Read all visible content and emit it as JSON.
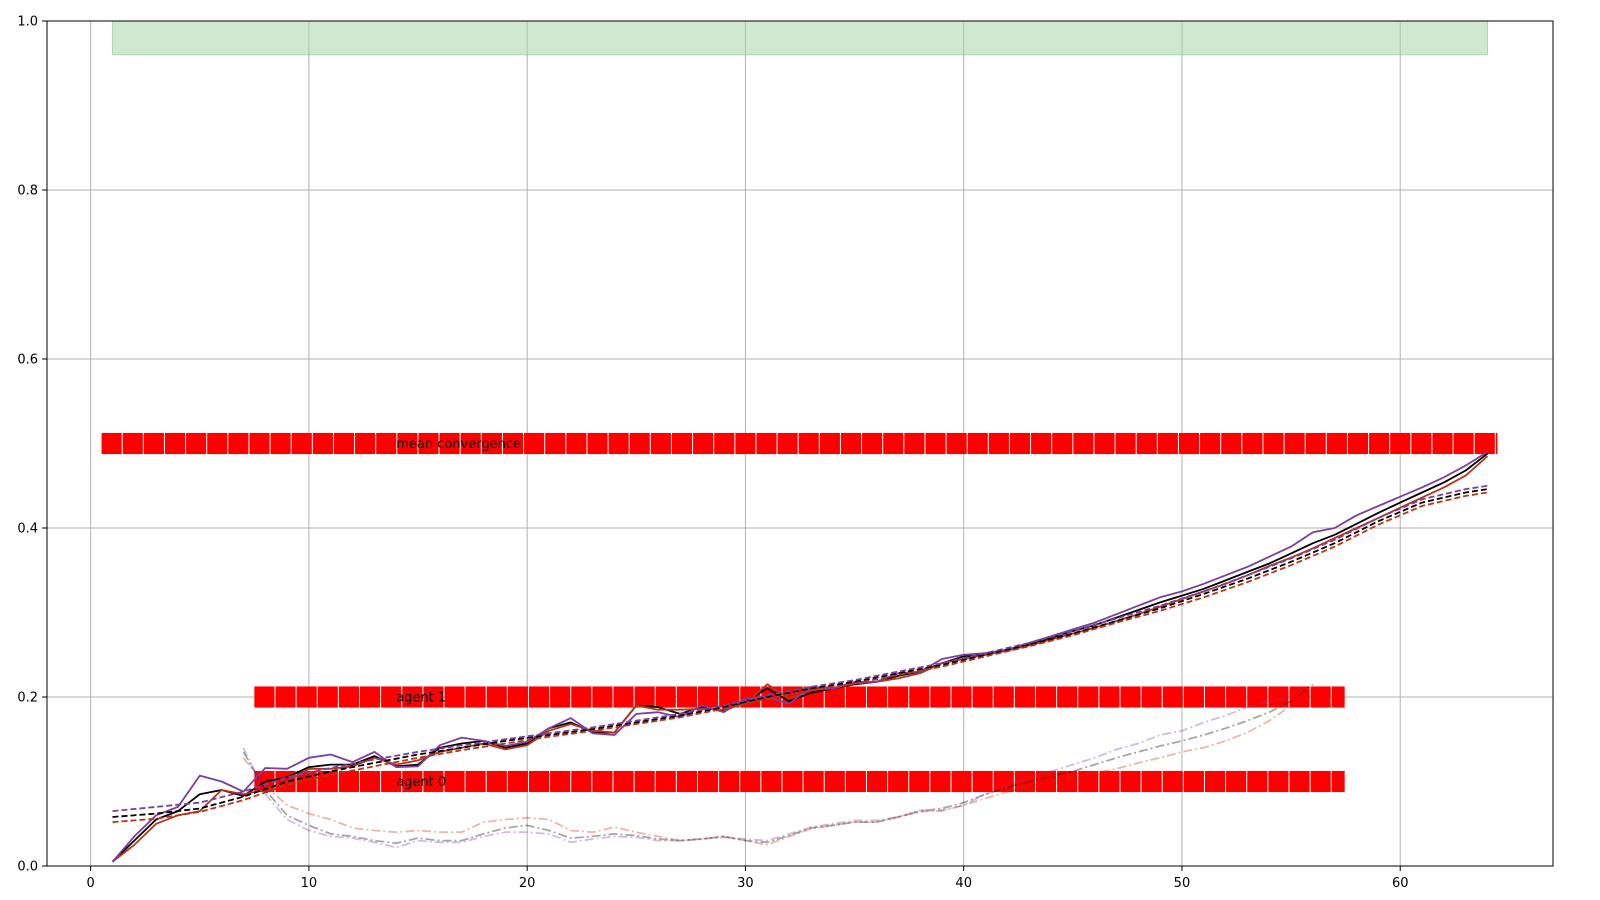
{
  "chart_data": {
    "type": "line",
    "title": "",
    "xlabel": "",
    "ylabel": "",
    "xlim": [
      -2,
      67
    ],
    "ylim": [
      0,
      1
    ],
    "grid": true,
    "legend": "none",
    "xticks": [
      0,
      10,
      20,
      30,
      40,
      50,
      60
    ],
    "yticks": [
      0.0,
      0.2,
      0.4,
      0.6,
      0.8,
      1.0
    ],
    "xtick_labels": [
      "0",
      "10",
      "20",
      "30",
      "40",
      "50",
      "60"
    ],
    "ytick_labels": [
      "0.0",
      "0.2",
      "0.4",
      "0.6",
      "0.8",
      "1.0"
    ],
    "colors": {
      "mean": "#000000",
      "agent0": "#b5361c",
      "agent1": "#7b3f9e",
      "bar": "#ff0000",
      "band": "#a8d5a8",
      "grid": "#b0b0b0"
    },
    "band": {
      "x": [
        1,
        64
      ],
      "y": [
        0.96,
        1.0
      ]
    },
    "annotations": [
      {
        "text": "mean convergence",
        "x": 14,
        "y": 0.5
      },
      {
        "text": "agent 1",
        "x": 14,
        "y": 0.2
      },
      {
        "text": "agent 0",
        "x": 14,
        "y": 0.1
      }
    ],
    "bar_rows": [
      {
        "y": 0.5,
        "x_start": 0.5,
        "x_end": 64.5,
        "height": 0.025
      },
      {
        "y": 0.2,
        "x_start": 7.5,
        "x_end": 57.5,
        "height": 0.025
      },
      {
        "y": 0.1,
        "x_start": 7.5,
        "x_end": 57.5,
        "height": 0.025
      }
    ],
    "series": [
      {
        "style": "solid",
        "color_key": "mean",
        "x": [
          1,
          2,
          3,
          4,
          5,
          6,
          7,
          8,
          9,
          10,
          11,
          12,
          13,
          14,
          15,
          16,
          17,
          18,
          19,
          20,
          21,
          22,
          23,
          24,
          25,
          26,
          27,
          28,
          29,
          30,
          31,
          32,
          33,
          34,
          35,
          36,
          37,
          38,
          39,
          40,
          41,
          42,
          43,
          44,
          45,
          46,
          47,
          48,
          49,
          50,
          51,
          52,
          53,
          54,
          55,
          56,
          57,
          58,
          59,
          60,
          61,
          62,
          63,
          64
        ],
        "y": [
          0.005,
          0.03,
          0.055,
          0.065,
          0.085,
          0.09,
          0.083,
          0.1,
          0.105,
          0.117,
          0.12,
          0.12,
          0.13,
          0.118,
          0.12,
          0.14,
          0.145,
          0.148,
          0.14,
          0.145,
          0.163,
          0.17,
          0.158,
          0.158,
          0.19,
          0.188,
          0.18,
          0.188,
          0.183,
          0.195,
          0.21,
          0.195,
          0.205,
          0.21,
          0.215,
          0.218,
          0.225,
          0.23,
          0.24,
          0.248,
          0.25,
          0.255,
          0.262,
          0.27,
          0.278,
          0.285,
          0.294,
          0.303,
          0.312,
          0.32,
          0.328,
          0.338,
          0.348,
          0.358,
          0.37,
          0.382,
          0.392,
          0.405,
          0.418,
          0.43,
          0.442,
          0.454,
          0.468,
          0.488
        ]
      },
      {
        "style": "solid",
        "color_key": "agent0",
        "x": [
          1,
          2,
          3,
          4,
          5,
          6,
          7,
          8,
          9,
          10,
          11,
          12,
          13,
          14,
          15,
          16,
          17,
          18,
          19,
          20,
          21,
          22,
          23,
          24,
          25,
          26,
          27,
          28,
          29,
          30,
          31,
          32,
          33,
          34,
          35,
          36,
          37,
          38,
          39,
          40,
          41,
          42,
          43,
          44,
          45,
          46,
          47,
          48,
          49,
          50,
          51,
          52,
          53,
          54,
          55,
          56,
          57,
          58,
          59,
          60,
          61,
          62,
          63,
          64
        ],
        "y": [
          0.005,
          0.025,
          0.05,
          0.06,
          0.065,
          0.09,
          0.085,
          0.09,
          0.1,
          0.115,
          0.115,
          0.118,
          0.128,
          0.12,
          0.125,
          0.135,
          0.14,
          0.145,
          0.138,
          0.143,
          0.16,
          0.168,
          0.16,
          0.158,
          0.19,
          0.185,
          0.185,
          0.186,
          0.185,
          0.192,
          0.215,
          0.198,
          0.208,
          0.21,
          0.216,
          0.218,
          0.222,
          0.228,
          0.24,
          0.245,
          0.25,
          0.255,
          0.261,
          0.268,
          0.275,
          0.282,
          0.29,
          0.298,
          0.307,
          0.316,
          0.325,
          0.334,
          0.344,
          0.355,
          0.365,
          0.376,
          0.388,
          0.4,
          0.412,
          0.424,
          0.436,
          0.448,
          0.462,
          0.485
        ]
      },
      {
        "style": "solid",
        "color_key": "agent1",
        "x": [
          1,
          2,
          3,
          4,
          5,
          6,
          7,
          8,
          9,
          10,
          11,
          12,
          13,
          14,
          15,
          16,
          17,
          18,
          19,
          20,
          21,
          22,
          23,
          24,
          25,
          26,
          27,
          28,
          29,
          30,
          31,
          32,
          33,
          34,
          35,
          36,
          37,
          38,
          39,
          40,
          41,
          42,
          43,
          44,
          45,
          46,
          47,
          48,
          49,
          50,
          51,
          52,
          53,
          54,
          55,
          56,
          57,
          58,
          59,
          60,
          61,
          62,
          63,
          64
        ],
        "y": [
          0.005,
          0.035,
          0.06,
          0.07,
          0.107,
          0.1,
          0.088,
          0.116,
          0.115,
          0.128,
          0.132,
          0.123,
          0.135,
          0.117,
          0.118,
          0.143,
          0.152,
          0.148,
          0.142,
          0.147,
          0.163,
          0.175,
          0.157,
          0.155,
          0.18,
          0.182,
          0.176,
          0.19,
          0.182,
          0.198,
          0.2,
          0.192,
          0.212,
          0.21,
          0.218,
          0.218,
          0.228,
          0.23,
          0.245,
          0.25,
          0.252,
          0.256,
          0.264,
          0.272,
          0.28,
          0.288,
          0.298,
          0.308,
          0.318,
          0.325,
          0.334,
          0.344,
          0.354,
          0.366,
          0.378,
          0.395,
          0.4,
          0.415,
          0.426,
          0.437,
          0.448,
          0.46,
          0.474,
          0.49
        ]
      },
      {
        "style": "dashed",
        "color_key": "mean",
        "x": [
          1,
          3,
          5,
          7,
          9,
          11,
          13,
          15,
          17,
          19,
          21,
          23,
          25,
          27,
          29,
          31,
          33,
          35,
          37,
          39,
          41,
          43,
          45,
          47,
          49,
          51,
          53,
          55,
          57,
          59,
          61,
          63,
          64
        ],
        "y": [
          0.058,
          0.062,
          0.068,
          0.082,
          0.1,
          0.112,
          0.122,
          0.132,
          0.14,
          0.148,
          0.155,
          0.162,
          0.17,
          0.178,
          0.188,
          0.2,
          0.21,
          0.218,
          0.228,
          0.238,
          0.25,
          0.262,
          0.275,
          0.29,
          0.305,
          0.322,
          0.34,
          0.36,
          0.382,
          0.408,
          0.43,
          0.442,
          0.446
        ]
      },
      {
        "style": "dashed",
        "color_key": "agent0",
        "x": [
          1,
          3,
          5,
          7,
          9,
          11,
          13,
          15,
          17,
          19,
          21,
          23,
          25,
          27,
          29,
          31,
          33,
          35,
          37,
          39,
          41,
          43,
          45,
          47,
          49,
          51,
          53,
          55,
          57,
          59,
          61,
          63,
          64
        ],
        "y": [
          0.052,
          0.056,
          0.064,
          0.078,
          0.096,
          0.108,
          0.118,
          0.128,
          0.137,
          0.145,
          0.153,
          0.16,
          0.168,
          0.176,
          0.186,
          0.198,
          0.208,
          0.216,
          0.226,
          0.236,
          0.248,
          0.26,
          0.273,
          0.288,
          0.302,
          0.318,
          0.336,
          0.356,
          0.378,
          0.404,
          0.426,
          0.438,
          0.442
        ]
      },
      {
        "style": "dashed",
        "color_key": "agent1",
        "x": [
          1,
          3,
          5,
          7,
          9,
          11,
          13,
          15,
          17,
          19,
          21,
          23,
          25,
          27,
          29,
          31,
          33,
          35,
          37,
          39,
          41,
          43,
          45,
          47,
          49,
          51,
          53,
          55,
          57,
          59,
          61,
          63,
          64
        ],
        "y": [
          0.065,
          0.07,
          0.075,
          0.088,
          0.105,
          0.116,
          0.126,
          0.135,
          0.143,
          0.15,
          0.157,
          0.164,
          0.172,
          0.18,
          0.19,
          0.202,
          0.212,
          0.22,
          0.23,
          0.24,
          0.252,
          0.264,
          0.278,
          0.293,
          0.308,
          0.325,
          0.344,
          0.364,
          0.386,
          0.412,
          0.434,
          0.446,
          0.45
        ]
      },
      {
        "style": "dashdot",
        "color_key": "mean",
        "opacity": 0.35,
        "x": [
          7,
          8,
          9,
          10,
          11,
          12,
          13,
          14,
          15,
          16,
          17,
          18,
          19,
          20,
          21,
          22,
          23,
          24,
          25,
          26,
          27,
          28,
          29,
          30,
          31,
          32,
          33,
          34,
          35,
          36,
          37,
          38,
          39,
          40,
          41,
          42,
          43,
          44,
          45,
          46,
          47,
          48,
          49,
          50,
          51,
          52,
          53,
          54,
          55,
          56
        ],
        "y": [
          0.135,
          0.09,
          0.06,
          0.048,
          0.038,
          0.035,
          0.03,
          0.027,
          0.033,
          0.03,
          0.03,
          0.038,
          0.045,
          0.048,
          0.042,
          0.033,
          0.035,
          0.038,
          0.036,
          0.032,
          0.03,
          0.032,
          0.035,
          0.03,
          0.028,
          0.036,
          0.045,
          0.048,
          0.052,
          0.052,
          0.058,
          0.065,
          0.068,
          0.075,
          0.085,
          0.093,
          0.1,
          0.106,
          0.112,
          0.12,
          0.128,
          0.135,
          0.142,
          0.148,
          0.155,
          0.163,
          0.172,
          0.182,
          0.195,
          0.215
        ]
      },
      {
        "style": "dashdot",
        "color_key": "agent0",
        "opacity": 0.35,
        "x": [
          7,
          8,
          9,
          10,
          11,
          12,
          13,
          14,
          15,
          16,
          17,
          18,
          19,
          20,
          21,
          22,
          23,
          24,
          25,
          26,
          27,
          28,
          29,
          30,
          31,
          32,
          33,
          34,
          35,
          36,
          37,
          38,
          39,
          40,
          41,
          42,
          43,
          44,
          45,
          46,
          47,
          48,
          49,
          50,
          51,
          52,
          53,
          54,
          55
        ],
        "y": [
          0.128,
          0.095,
          0.072,
          0.062,
          0.055,
          0.045,
          0.042,
          0.04,
          0.042,
          0.04,
          0.04,
          0.052,
          0.055,
          0.057,
          0.055,
          0.042,
          0.04,
          0.046,
          0.04,
          0.035,
          0.03,
          0.032,
          0.035,
          0.03,
          0.025,
          0.035,
          0.044,
          0.048,
          0.052,
          0.052,
          0.058,
          0.066,
          0.065,
          0.072,
          0.08,
          0.088,
          0.095,
          0.1,
          0.105,
          0.11,
          0.115,
          0.122,
          0.128,
          0.135,
          0.14,
          0.148,
          0.158,
          0.172,
          0.19
        ]
      },
      {
        "style": "dashdot",
        "color_key": "agent1",
        "opacity": 0.35,
        "x": [
          7,
          8,
          9,
          10,
          11,
          12,
          13,
          14,
          15,
          16,
          17,
          18,
          19,
          20,
          21,
          22,
          23,
          24,
          25,
          26,
          27,
          28,
          29,
          30,
          31,
          32,
          33,
          34,
          35,
          36,
          37,
          38,
          39,
          40,
          41,
          42,
          43,
          44,
          45,
          46,
          47,
          48,
          49,
          50,
          51,
          52,
          53,
          54,
          55
        ],
        "y": [
          0.14,
          0.085,
          0.055,
          0.042,
          0.035,
          0.033,
          0.028,
          0.022,
          0.03,
          0.028,
          0.028,
          0.035,
          0.04,
          0.04,
          0.038,
          0.028,
          0.032,
          0.035,
          0.034,
          0.03,
          0.03,
          0.032,
          0.034,
          0.032,
          0.03,
          0.038,
          0.046,
          0.05,
          0.054,
          0.054,
          0.058,
          0.064,
          0.066,
          0.072,
          0.085,
          0.095,
          0.105,
          0.112,
          0.12,
          0.128,
          0.138,
          0.145,
          0.155,
          0.16,
          0.17,
          0.178,
          0.188,
          0.195,
          0.2
        ]
      }
    ]
  }
}
